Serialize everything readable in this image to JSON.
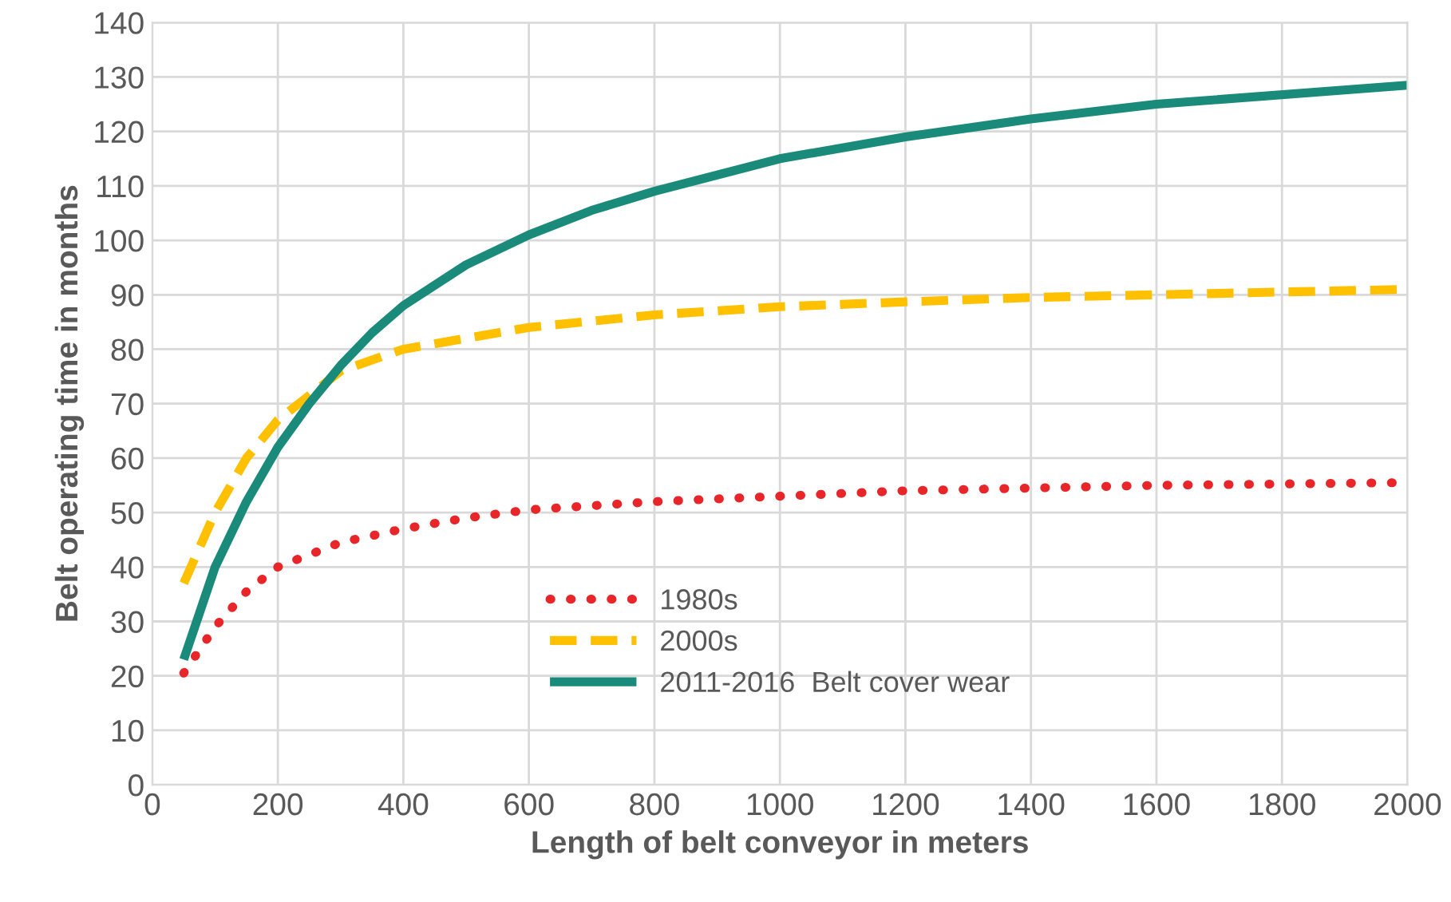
{
  "chart_data": {
    "type": "line",
    "xlabel": "Length of belt conveyor in meters",
    "ylabel": "Belt operating time in months",
    "xlim": [
      0,
      2000
    ],
    "xticks": [
      0,
      200,
      400,
      600,
      800,
      1000,
      1200,
      1400,
      1600,
      1800,
      2000
    ],
    "ylim": [
      0,
      140
    ],
    "yticks": [
      0,
      10,
      20,
      30,
      40,
      50,
      60,
      70,
      80,
      90,
      100,
      110,
      120,
      130,
      140
    ],
    "grid": true,
    "legend": "lower center",
    "marker": "none",
    "series": [
      {
        "name": "1980s",
        "color": "#e8262a",
        "line_style": "dotted",
        "x": [
          50,
          100,
          150,
          200,
          300,
          400,
          500,
          600,
          800,
          1000,
          1200,
          1400,
          1600,
          2000
        ],
        "values": [
          20.5,
          29,
          35.5,
          40,
          44.5,
          47,
          49,
          50.5,
          52,
          53,
          54,
          54.5,
          55,
          55.5
        ]
      },
      {
        "name": "2000s",
        "color": "#ffc000",
        "line_style": "dashed",
        "x": [
          50,
          100,
          150,
          200,
          300,
          400,
          600,
          800,
          1000,
          1200,
          1400,
          1600,
          2000
        ],
        "values": [
          37,
          50,
          60,
          67,
          76,
          80,
          84,
          86.3,
          87.8,
          88.7,
          89.5,
          90,
          91
        ]
      },
      {
        "name": "2011-2016  Belt cover wear",
        "color": "#1a8a7a",
        "line_style": "solid",
        "x": [
          50,
          100,
          150,
          200,
          250,
          300,
          350,
          400,
          500,
          600,
          700,
          800,
          1000,
          1200,
          1400,
          1600,
          2000
        ],
        "values": [
          23,
          40,
          52,
          62,
          70,
          77,
          83,
          88,
          95.5,
          101,
          105.5,
          109,
          115,
          119,
          122.3,
          125,
          128.5
        ]
      }
    ]
  }
}
